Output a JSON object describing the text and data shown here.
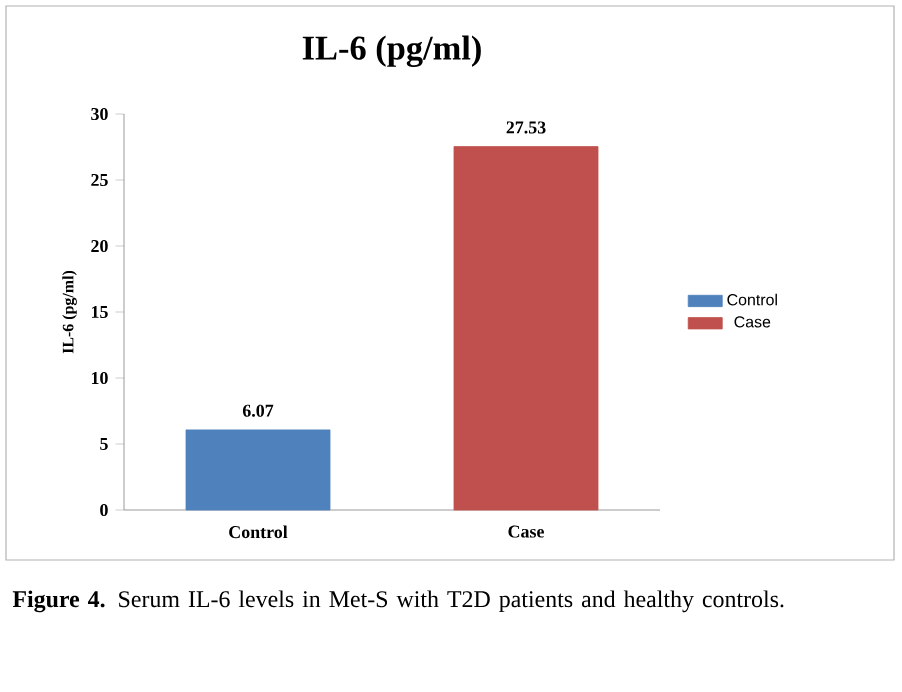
{
  "chart_data": {
    "type": "bar",
    "title": "IL-6 (pg/ml)",
    "ylabel": "IL-6 (pg/ml)",
    "categories": [
      "Control",
      "Case"
    ],
    "series": [
      {
        "name": "Control",
        "color": "#4f81bd",
        "values": [
          6.07,
          null
        ]
      },
      {
        "name": "Case",
        "color": "#c0504d",
        "values": [
          null,
          27.53
        ]
      }
    ],
    "ylim": [
      0,
      30
    ],
    "yticks": [
      0,
      5,
      10,
      15,
      20,
      25,
      30
    ],
    "data_labels": true,
    "legend": "right",
    "grid": false,
    "annotations": [
      "**Figure 4.** Serum IL-6 levels in Met-S with T2D patients and healthy controls."
    ]
  }
}
